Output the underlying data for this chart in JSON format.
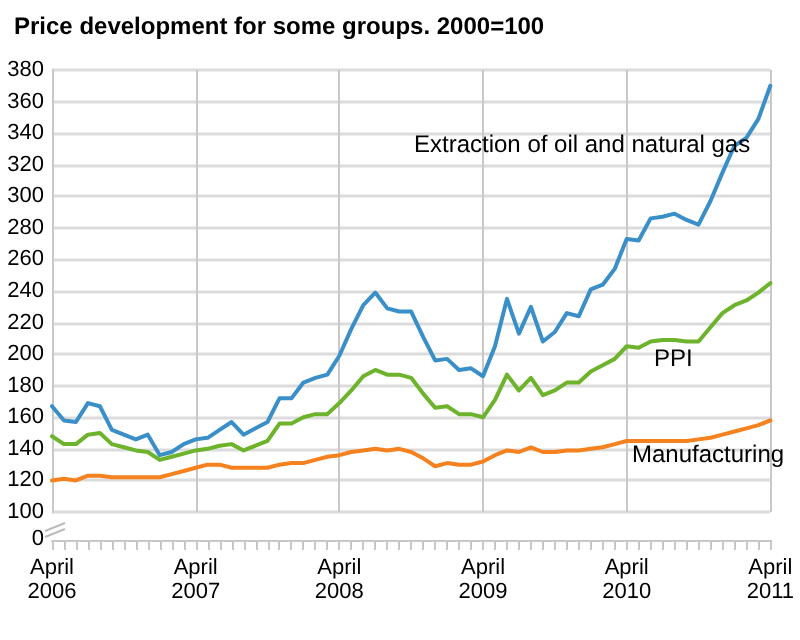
{
  "chart_data": {
    "type": "line",
    "title": "Price development for some groups. 2000=100",
    "categories": [
      "April 2006",
      null,
      null,
      null,
      null,
      null,
      null,
      null,
      null,
      null,
      null,
      null,
      "April 2007",
      null,
      null,
      null,
      null,
      null,
      null,
      null,
      null,
      null,
      null,
      null,
      "April 2008",
      null,
      null,
      null,
      null,
      null,
      null,
      null,
      null,
      null,
      null,
      null,
      "April 2009",
      null,
      null,
      null,
      null,
      null,
      null,
      null,
      null,
      null,
      null,
      null,
      "April 2010",
      null,
      null,
      null,
      null,
      null,
      null,
      null,
      null,
      null,
      null,
      null,
      "April 2011"
    ],
    "series": [
      {
        "name": "Extraction of oil and natural gas",
        "color": "#3a8fc8",
        "values": [
          167,
          158,
          157,
          169,
          167,
          152,
          149,
          146,
          149,
          136,
          138,
          143,
          146,
          147,
          152,
          157,
          149,
          153,
          157,
          172,
          172,
          182,
          185,
          187,
          199,
          216,
          231,
          239,
          229,
          227,
          227,
          211,
          196,
          197,
          190,
          191,
          186,
          205,
          235,
          213,
          230,
          208,
          214,
          226,
          224,
          241,
          244,
          254,
          273,
          272,
          286,
          287,
          289,
          285,
          282,
          297,
          315,
          332,
          337,
          349,
          370
        ]
      },
      {
        "name": "PPI",
        "color": "#6db32c",
        "values": [
          148,
          143,
          143,
          149,
          150,
          143,
          141,
          139,
          138,
          133,
          135,
          137,
          139,
          140,
          142,
          143,
          139,
          142,
          145,
          156,
          156,
          160,
          162,
          162,
          169,
          177,
          186,
          190,
          187,
          187,
          185,
          175,
          166,
          167,
          162,
          162,
          160,
          171,
          187,
          177,
          185,
          174,
          177,
          182,
          182,
          189,
          193,
          197,
          205,
          204,
          208,
          209,
          209,
          208,
          208,
          217,
          226,
          231,
          234,
          239,
          245
        ]
      },
      {
        "name": "Manufacturing",
        "color": "#f5821f",
        "values": [
          120,
          121,
          120,
          123,
          123,
          122,
          122,
          122,
          122,
          122,
          124,
          126,
          128,
          130,
          130,
          128,
          128,
          128,
          128,
          130,
          131,
          131,
          133,
          135,
          136,
          138,
          139,
          140,
          139,
          140,
          138,
          134,
          129,
          131,
          130,
          130,
          132,
          136,
          139,
          138,
          141,
          138,
          138,
          139,
          139,
          140,
          141,
          143,
          145,
          145,
          145,
          145,
          145,
          145,
          146,
          147,
          149,
          151,
          153,
          155,
          158
        ]
      }
    ],
    "ylim": [
      100,
      380
    ],
    "yticks": [
      100,
      120,
      140,
      160,
      180,
      200,
      220,
      240,
      260,
      280,
      300,
      320,
      340,
      360,
      380
    ],
    "annotations": [
      "0"
    ],
    "grid": true,
    "legend": false,
    "marker": "none",
    "line_style": "solid"
  }
}
